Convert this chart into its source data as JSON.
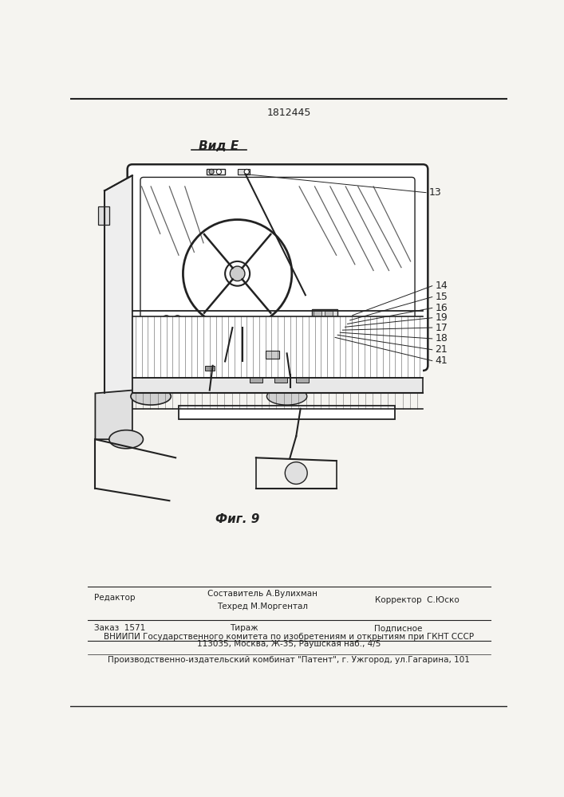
{
  "title": "1812445",
  "view_label": "Вид E",
  "fig_label": "Фиг. 9",
  "bg_color": "#f5f4f0",
  "line_color": "#222222",
  "footer_line1_left": "Редактор",
  "footer_line1_mid1": "Составитель А.Вулихман",
  "footer_line1_mid2": "Техред М.Моргентал",
  "footer_line1_right": "Корректор  С.Юско",
  "footer_line2_left": "Заказ  1571",
  "footer_line2_mid": "Тираж",
  "footer_line2_right": "Подписное",
  "footer_line3": "ВНИИПИ Государственного комитета по изобретениям и открытиям при ГКНТ СССР",
  "footer_line4": "113035, Москва, Ж-35, Раушская наб., 4/5",
  "footer_line5": "Производственно-издательский комбинат \"Патент\", г. Ужгород, ул.Гагарина, 101"
}
